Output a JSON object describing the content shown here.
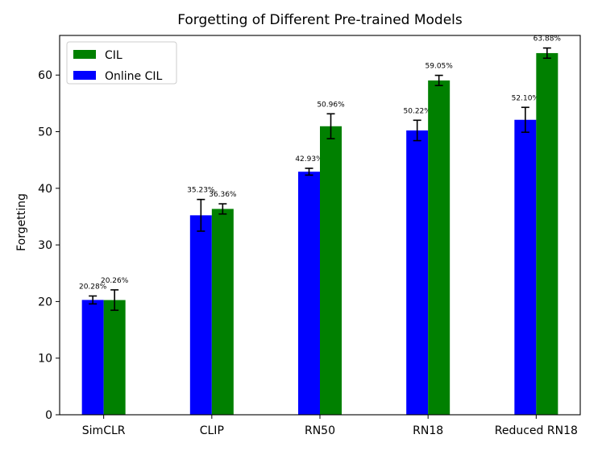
{
  "chart_data": {
    "type": "bar",
    "title": "Forgetting of Different Pre-trained Models",
    "xlabel": "",
    "ylabel": "Forgetting",
    "ylim": [
      0,
      67
    ],
    "yticks": [
      0,
      10,
      20,
      30,
      40,
      50,
      60
    ],
    "categories": [
      "SimCLR",
      "CLIP",
      "RN50",
      "RN18",
      "Reduced RN18"
    ],
    "series": [
      {
        "name": "Online CIL",
        "color": "#0000ff",
        "values": [
          20.28,
          35.23,
          42.93,
          50.22,
          52.1
        ],
        "errors": [
          0.7,
          2.8,
          0.6,
          1.8,
          2.2
        ],
        "labels": [
          "20.28%",
          "35.23%",
          "42.93%",
          "50.22%",
          "52.10%"
        ]
      },
      {
        "name": "CIL",
        "color": "#008000",
        "values": [
          20.26,
          36.36,
          50.96,
          59.05,
          63.88
        ],
        "errors": [
          1.8,
          0.9,
          2.2,
          0.9,
          0.9
        ],
        "labels": [
          "20.26%",
          "36.36%",
          "50.96%",
          "59.05%",
          "63.88%"
        ]
      }
    ],
    "legend": {
      "position": "top-left",
      "entries": [
        "CIL",
        "Online CIL"
      ]
    },
    "grid": false
  }
}
